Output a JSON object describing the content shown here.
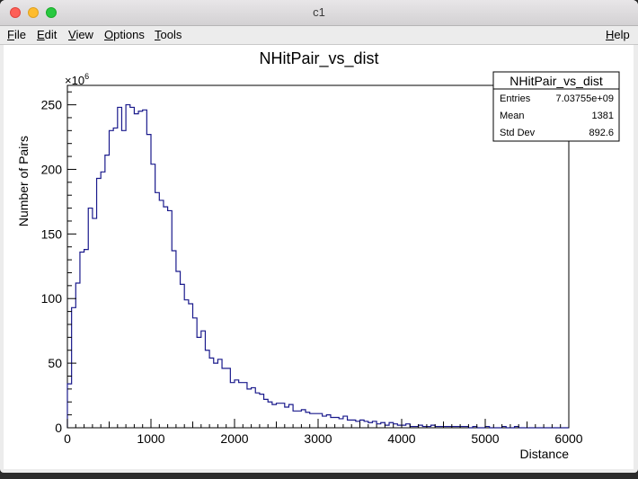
{
  "window": {
    "title": "c1"
  },
  "menu": {
    "file": {
      "first": "F",
      "rest": "ile"
    },
    "edit": {
      "first": "E",
      "rest": "dit"
    },
    "view": {
      "first": "V",
      "rest": "iew"
    },
    "options": {
      "first": "O",
      "rest": "ptions"
    },
    "tools": {
      "first": "T",
      "rest": "ools"
    },
    "help": {
      "first": "H",
      "rest": "elp"
    }
  },
  "stats": {
    "title": "NHitPair_vs_dist",
    "rows": [
      {
        "label": "Entries",
        "value": "7.03755e+09"
      },
      {
        "label": "Mean",
        "value": "1381"
      },
      {
        "label": "Std Dev",
        "value": "892.6"
      }
    ]
  },
  "chart_data": {
    "type": "bar",
    "title": "NHitPair_vs_dist",
    "xlabel": "Distance",
    "ylabel": "Number of Pairs",
    "y_exponent_label": "×10",
    "y_exponent_power": "6",
    "xlim": [
      0,
      6000
    ],
    "ylim": [
      0,
      265
    ],
    "x_ticks": [
      0,
      1000,
      2000,
      3000,
      4000,
      5000,
      6000
    ],
    "y_ticks": [
      0,
      50,
      100,
      150,
      200,
      250
    ],
    "grid": false,
    "line_color": "#1a1a8c",
    "bin_width": 50,
    "values": [
      34,
      93,
      112,
      136,
      138,
      170,
      162,
      193,
      198,
      211,
      230,
      232,
      248,
      230,
      250,
      248,
      243,
      245,
      246,
      227,
      204,
      182,
      176,
      171,
      168,
      137,
      121,
      111,
      99,
      96,
      85,
      70,
      75,
      60,
      54,
      50,
      53,
      46,
      46,
      35,
      37,
      35,
      35,
      30,
      31,
      27,
      26,
      22,
      20,
      18,
      19,
      19,
      16,
      18,
      13,
      13,
      14,
      12,
      11,
      11,
      11,
      9,
      10,
      8,
      8,
      7,
      9,
      6,
      6,
      5,
      6,
      5,
      4,
      5,
      3,
      4,
      2,
      4,
      3,
      2,
      2,
      3,
      1,
      1,
      2,
      1,
      1,
      2,
      1,
      1,
      1,
      1,
      1,
      1,
      1,
      1,
      0,
      1,
      0,
      0,
      1,
      0,
      0,
      0,
      1,
      0,
      0,
      1,
      0,
      0,
      0,
      0,
      0,
      0,
      0,
      0,
      0,
      0,
      0,
      0
    ]
  }
}
